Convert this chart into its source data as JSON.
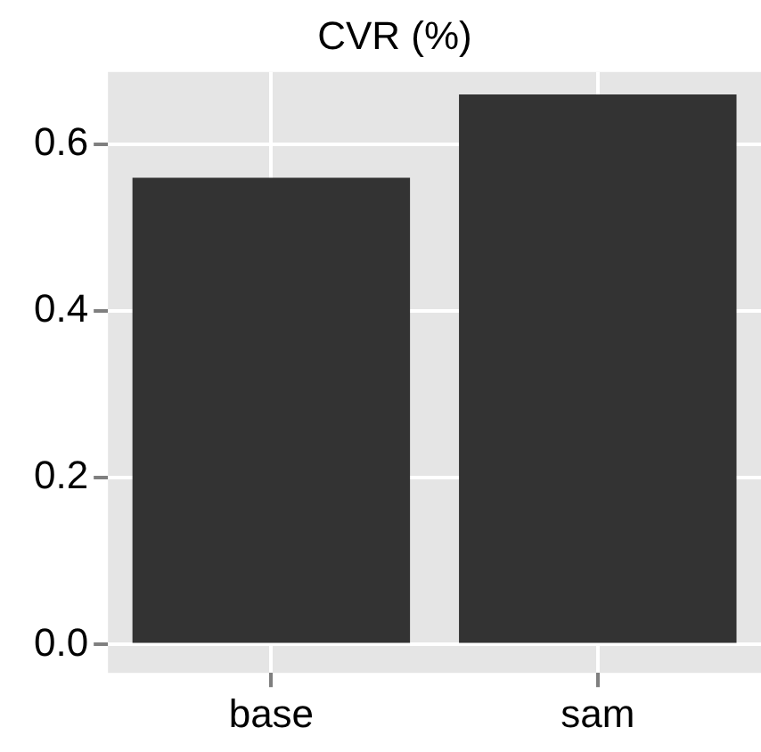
{
  "chart_data": {
    "type": "bar",
    "title": "CVR (%)",
    "categories": [
      "base",
      "sam"
    ],
    "values": [
      0.56,
      0.66
    ],
    "color": "#333333",
    "ylim": [
      -0.034,
      0.687
    ],
    "yticks": [
      {
        "value": 0,
        "label": "0.0"
      },
      {
        "value": 0.2,
        "label": "0.2"
      },
      {
        "value": 0.4,
        "label": "0.4"
      },
      {
        "value": 0.6,
        "label": "0.6"
      }
    ],
    "grid": true,
    "legend": false
  }
}
